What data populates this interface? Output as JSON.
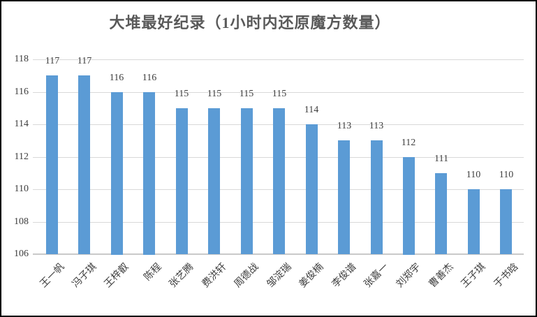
{
  "title": "大堆最好纪录（1小时内还原魔方数量）",
  "colors": {
    "bar": "#5B9BD5",
    "title_text": "#595959",
    "gridline": "#D9D9D9",
    "axis_line": "#C9C9C9",
    "tick_text": "#404040",
    "data_label_text": "#404040",
    "border": "#000000",
    "background": "#FFFFFF"
  },
  "chart_data": {
    "type": "bar",
    "title": "大堆最好纪录（1小时内还原魔方数量）",
    "categories": [
      "王一帆",
      "冯子琪",
      "王梓叡",
      "陈程",
      "张艺腾",
      "费洪轩",
      "周德战",
      "邹淀瑞",
      "姜俊楠",
      "李俊谱",
      "张嘉一",
      "刘郑宇",
      "曹善杰",
      "王子琪",
      "于书晗"
    ],
    "values": [
      117,
      117,
      116,
      116,
      115,
      115,
      115,
      115,
      114,
      113,
      113,
      112,
      111,
      110,
      110
    ],
    "xlabel": "",
    "ylabel": "",
    "ylim": [
      106,
      118
    ],
    "yticks": [
      106,
      108,
      110,
      112,
      114,
      116,
      118
    ],
    "grid": true,
    "legend": false,
    "data_labels": true,
    "xtick_rotation": 45
  }
}
